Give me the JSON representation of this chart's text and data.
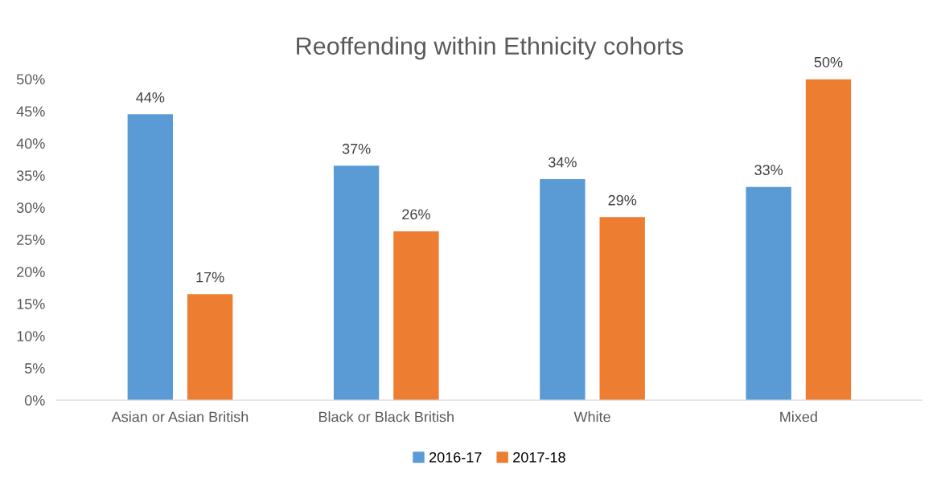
{
  "chart_data": {
    "type": "bar",
    "title": "Reoffending within Ethnicity cohorts",
    "categories": [
      "Asian or Asian British",
      "Black or Black British",
      "White",
      "Mixed"
    ],
    "series": [
      {
        "name": "2016-17",
        "color": "#5b9bd5",
        "values": [
          44.5,
          36.5,
          34.4,
          33.2
        ],
        "value_labels": [
          "44%",
          "37%",
          "34%",
          "33%"
        ]
      },
      {
        "name": "2017-18",
        "color": "#ed7d31",
        "values": [
          16.5,
          26.3,
          28.5,
          50
        ],
        "value_labels": [
          "17%",
          "26%",
          "29%",
          "50%"
        ]
      }
    ],
    "ylim": [
      0,
      50
    ],
    "yticks": [
      {
        "value": 0,
        "label": "0%"
      },
      {
        "value": 5,
        "label": "5%"
      },
      {
        "value": 10,
        "label": "10%"
      },
      {
        "value": 15,
        "label": "15%"
      },
      {
        "value": 20,
        "label": "20%"
      },
      {
        "value": 25,
        "label": "25%"
      },
      {
        "value": 30,
        "label": "30%"
      },
      {
        "value": 35,
        "label": "35%"
      },
      {
        "value": 40,
        "label": "40%"
      },
      {
        "value": 45,
        "label": "45%"
      },
      {
        "value": 50,
        "label": "50%"
      }
    ],
    "grid": false,
    "legend": "bottom"
  }
}
